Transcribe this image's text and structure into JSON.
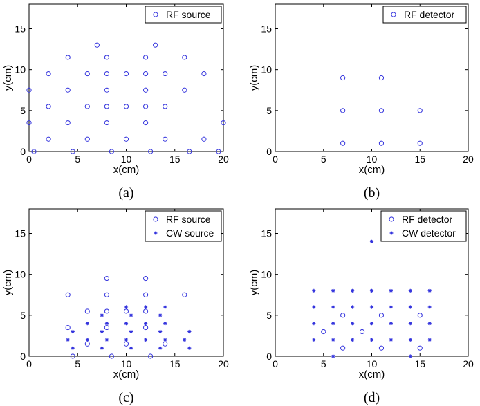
{
  "colors": {
    "marker": "#3333dd",
    "axis": "#000000"
  },
  "chart_data": [
    {
      "type": "scatter",
      "caption": "(a)",
      "xlabel": "x(cm)",
      "ylabel": "y(cm)",
      "xlim": [
        0,
        20
      ],
      "ylim": [
        0,
        18
      ],
      "xticks": [
        0,
        5,
        10,
        15,
        20
      ],
      "yticks": [
        0,
        5,
        10,
        15
      ],
      "legend_position": "top-right",
      "grid": false,
      "series": [
        {
          "name": "RF source",
          "marker": "circle",
          "points": [
            [
              7,
              13
            ],
            [
              13,
              13
            ],
            [
              4,
              11.5
            ],
            [
              8,
              11.5
            ],
            [
              12,
              11.5
            ],
            [
              16,
              11.5
            ],
            [
              2,
              9.5
            ],
            [
              6,
              9.5
            ],
            [
              8,
              9.5
            ],
            [
              10,
              9.5
            ],
            [
              12,
              9.5
            ],
            [
              14,
              9.5
            ],
            [
              18,
              9.5
            ],
            [
              0,
              7.5
            ],
            [
              4,
              7.5
            ],
            [
              8,
              7.5
            ],
            [
              12,
              7.5
            ],
            [
              16,
              7.5
            ],
            [
              2,
              5.5
            ],
            [
              6,
              5.5
            ],
            [
              8,
              5.5
            ],
            [
              10,
              5.5
            ],
            [
              12,
              5.5
            ],
            [
              14,
              5.5
            ],
            [
              0,
              3.5
            ],
            [
              4,
              3.5
            ],
            [
              8,
              3.5
            ],
            [
              12,
              3.5
            ],
            [
              20,
              3.5
            ],
            [
              2,
              1.5
            ],
            [
              6,
              1.5
            ],
            [
              10,
              1.5
            ],
            [
              14,
              1.5
            ],
            [
              18,
              1.5
            ],
            [
              0.5,
              0
            ],
            [
              4.5,
              0
            ],
            [
              8.5,
              0
            ],
            [
              12.5,
              0
            ],
            [
              16.5,
              0
            ],
            [
              19.5,
              0
            ]
          ]
        }
      ]
    },
    {
      "type": "scatter",
      "caption": "(b)",
      "xlabel": "x(cm)",
      "ylabel": "y(cm)",
      "xlim": [
        0,
        20
      ],
      "ylim": [
        0,
        18
      ],
      "xticks": [
        0,
        5,
        10,
        15,
        20
      ],
      "yticks": [
        0,
        5,
        10,
        15
      ],
      "legend_position": "top-right",
      "grid": false,
      "series": [
        {
          "name": "RF detector",
          "marker": "circle",
          "points": [
            [
              7,
              9
            ],
            [
              11,
              9
            ],
            [
              7,
              5
            ],
            [
              11,
              5
            ],
            [
              15,
              5
            ],
            [
              7,
              1
            ],
            [
              11,
              1
            ],
            [
              15,
              1
            ]
          ]
        }
      ]
    },
    {
      "type": "scatter",
      "caption": "(c)",
      "xlabel": "x(cm)",
      "ylabel": "y(cm)",
      "xlim": [
        0,
        20
      ],
      "ylim": [
        0,
        18
      ],
      "xticks": [
        0,
        5,
        10,
        15,
        20
      ],
      "yticks": [
        0,
        5,
        10,
        15
      ],
      "legend_position": "top-right",
      "grid": false,
      "series": [
        {
          "name": "RF source",
          "marker": "circle",
          "points": [
            [
              8,
              9.5
            ],
            [
              12,
              9.5
            ],
            [
              4,
              7.5
            ],
            [
              8,
              7.5
            ],
            [
              12,
              7.5
            ],
            [
              16,
              7.5
            ],
            [
              6,
              5.5
            ],
            [
              8,
              5.5
            ],
            [
              10,
              5.5
            ],
            [
              12,
              5.5
            ],
            [
              4,
              3.5
            ],
            [
              8,
              3.5
            ],
            [
              12,
              3.5
            ],
            [
              6,
              1.5
            ],
            [
              10,
              1.5
            ],
            [
              14,
              1.5
            ],
            [
              4.5,
              0
            ],
            [
              8.5,
              0
            ],
            [
              12.5,
              0
            ]
          ]
        },
        {
          "name": "CW source",
          "marker": "star",
          "points": [
            [
              10,
              6
            ],
            [
              12,
              6
            ],
            [
              14,
              6
            ],
            [
              7.5,
              5
            ],
            [
              10.5,
              5
            ],
            [
              13.5,
              5
            ],
            [
              6,
              4
            ],
            [
              8,
              4
            ],
            [
              10,
              4
            ],
            [
              12,
              4
            ],
            [
              14,
              4
            ],
            [
              4.5,
              3
            ],
            [
              7.5,
              3
            ],
            [
              10.5,
              3
            ],
            [
              13.5,
              3
            ],
            [
              16.5,
              3
            ],
            [
              4,
              2
            ],
            [
              6,
              2
            ],
            [
              8,
              2
            ],
            [
              10,
              2
            ],
            [
              12,
              2
            ],
            [
              14,
              2
            ],
            [
              16,
              2
            ],
            [
              4.5,
              1
            ],
            [
              7.5,
              1
            ],
            [
              10.5,
              1
            ],
            [
              13.5,
              1
            ],
            [
              16.5,
              1
            ]
          ]
        }
      ]
    },
    {
      "type": "scatter",
      "caption": "(d)",
      "xlabel": "x(cm)",
      "ylabel": "y(cm)",
      "xlim": [
        0,
        20
      ],
      "ylim": [
        0,
        18
      ],
      "xticks": [
        0,
        5,
        10,
        15,
        20
      ],
      "yticks": [
        0,
        5,
        10,
        15
      ],
      "legend_position": "top-right",
      "grid": false,
      "series": [
        {
          "name": "RF detector",
          "marker": "circle",
          "points": [
            [
              7,
              5
            ],
            [
              11,
              5
            ],
            [
              15,
              5
            ],
            [
              5,
              3
            ],
            [
              9,
              3
            ],
            [
              7,
              1
            ],
            [
              11,
              1
            ],
            [
              15,
              1
            ]
          ]
        },
        {
          "name": "CW detector",
          "marker": "star",
          "points": [
            [
              10,
              14
            ],
            [
              4,
              8
            ],
            [
              6,
              8
            ],
            [
              8,
              8
            ],
            [
              10,
              8
            ],
            [
              12,
              8
            ],
            [
              14,
              8
            ],
            [
              16,
              8
            ],
            [
              4,
              6
            ],
            [
              6,
              6
            ],
            [
              8,
              6
            ],
            [
              10,
              6
            ],
            [
              12,
              6
            ],
            [
              14,
              6
            ],
            [
              16,
              6
            ],
            [
              4,
              4
            ],
            [
              6,
              4
            ],
            [
              8,
              4
            ],
            [
              10,
              4
            ],
            [
              12,
              4
            ],
            [
              14,
              4
            ],
            [
              16,
              4
            ],
            [
              4,
              2
            ],
            [
              6,
              2
            ],
            [
              8,
              2
            ],
            [
              10,
              2
            ],
            [
              12,
              2
            ],
            [
              14,
              2
            ],
            [
              16,
              2
            ],
            [
              6,
              0
            ],
            [
              14,
              0
            ]
          ]
        }
      ]
    }
  ]
}
